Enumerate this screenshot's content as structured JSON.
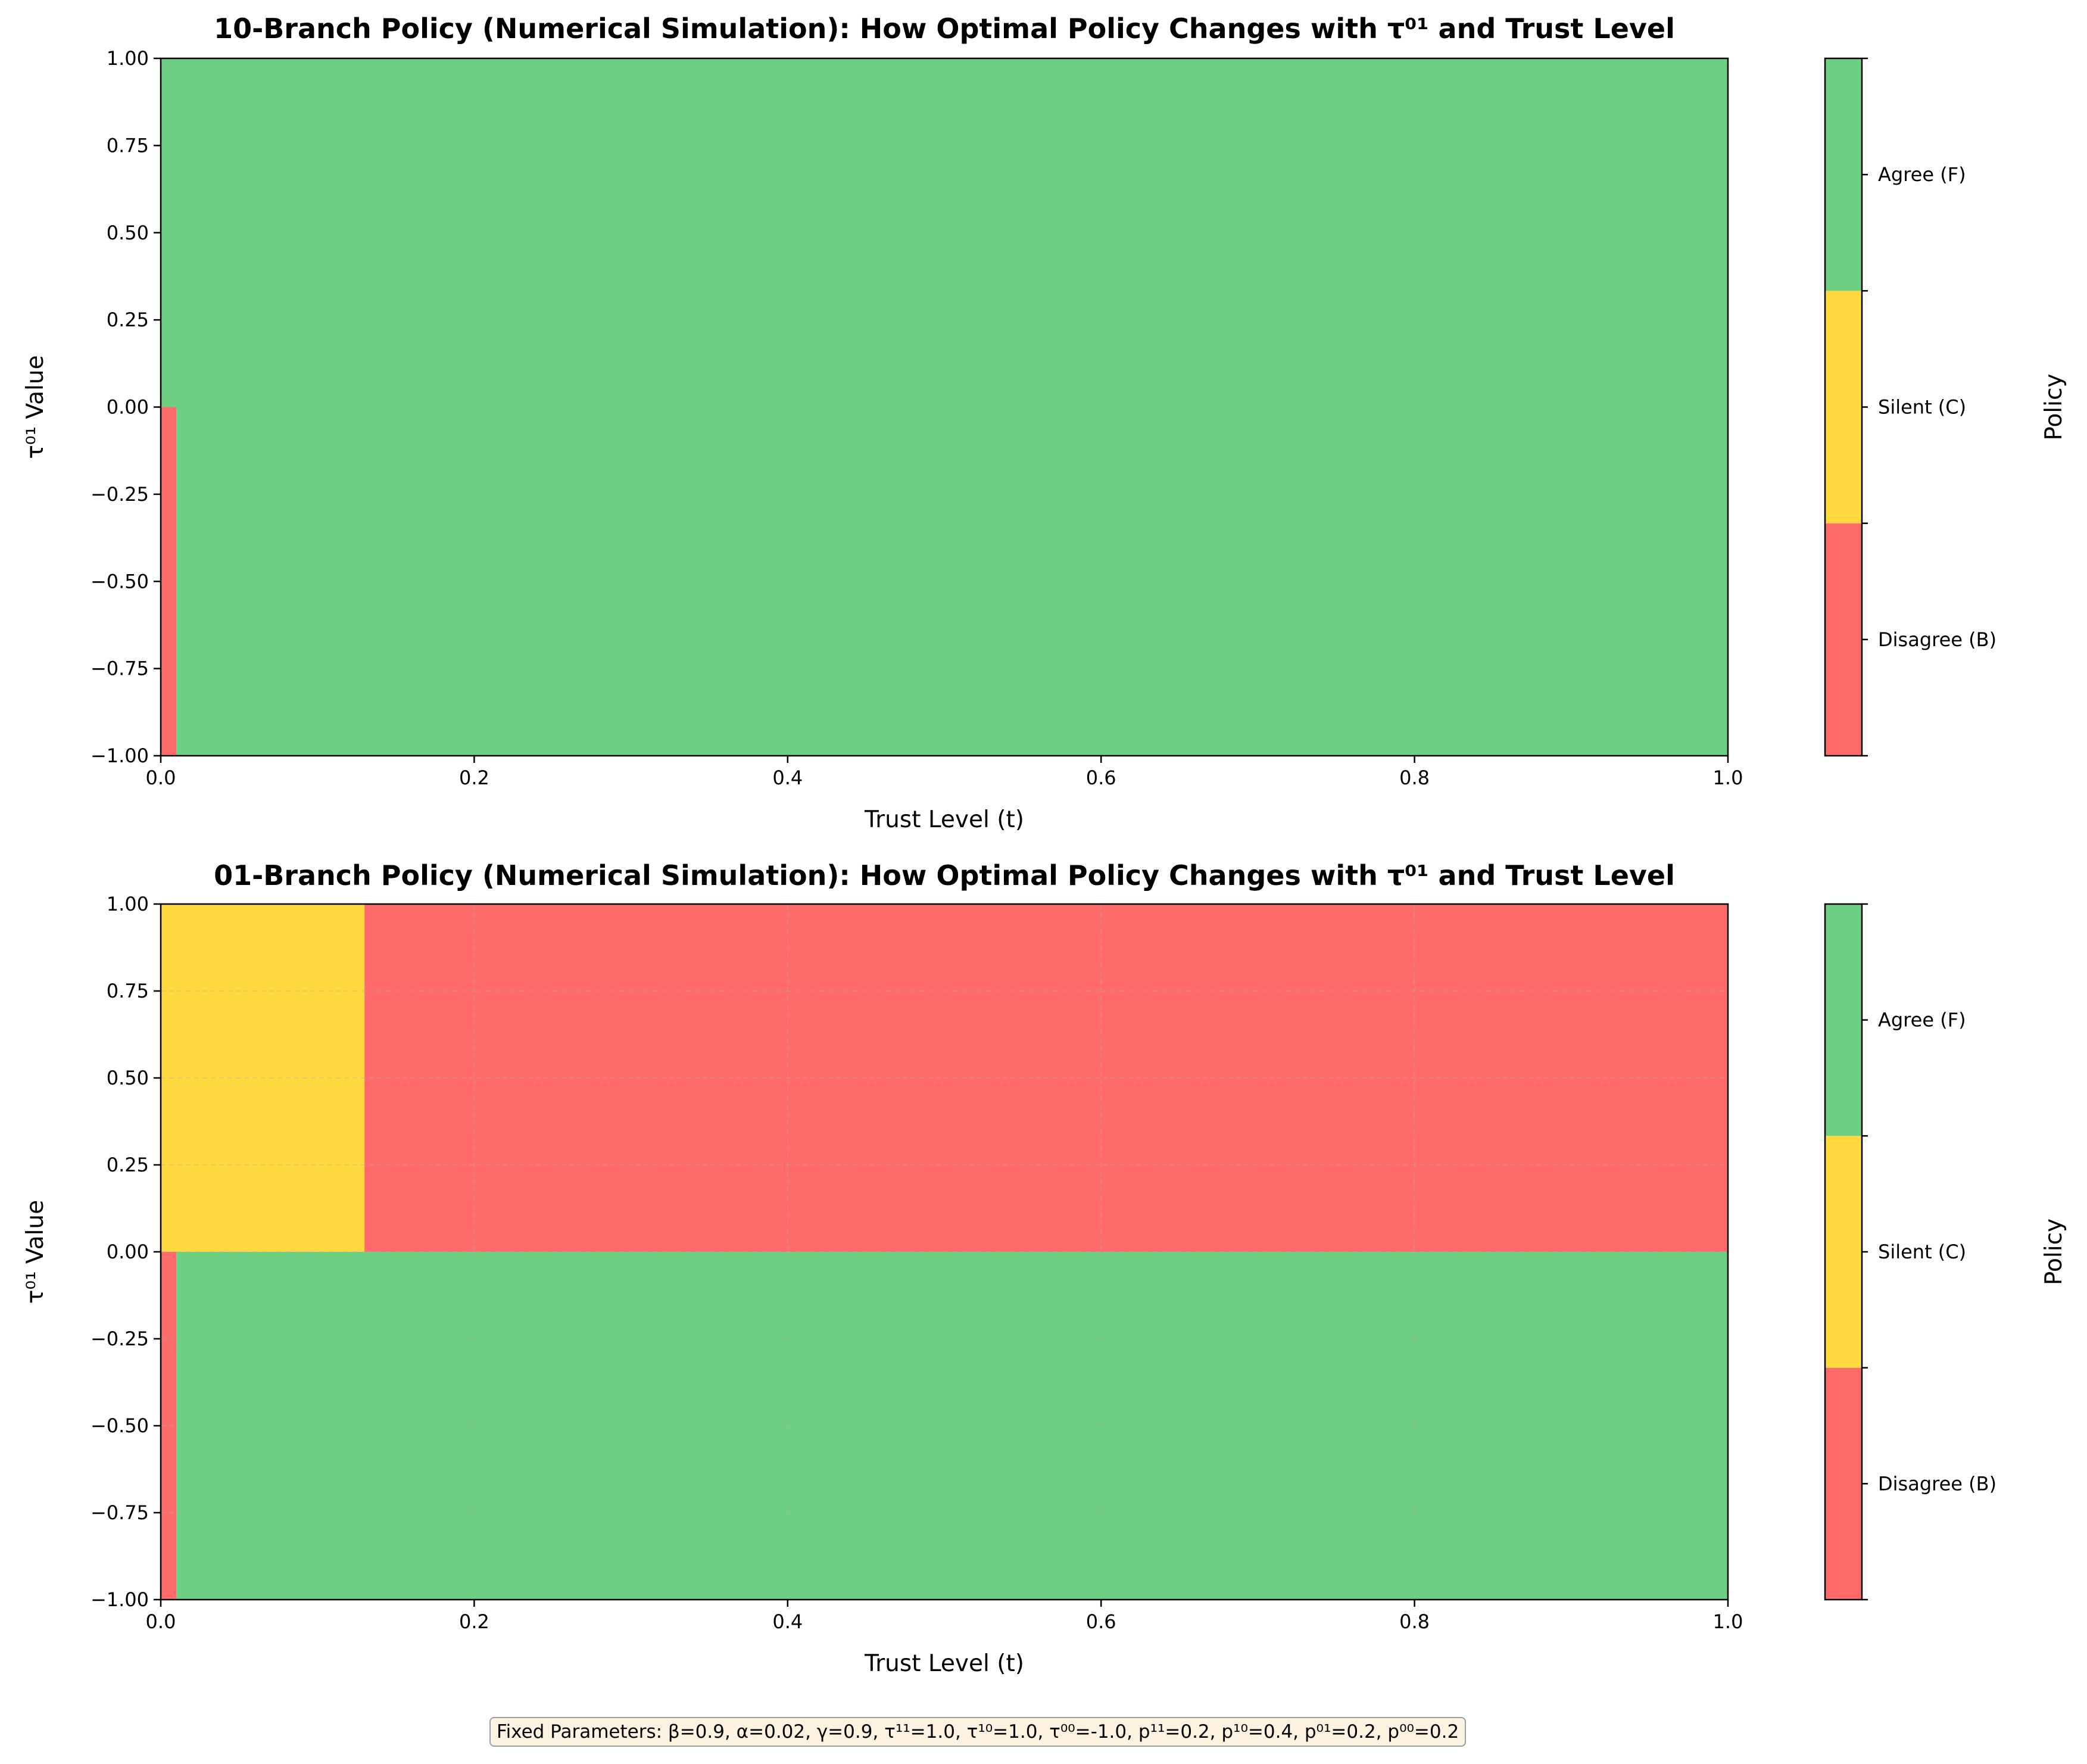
{
  "chart_data": [
    {
      "type": "heatmap",
      "title": "10-Branch Policy (Numerical Simulation): How Optimal Policy Changes with τ⁰¹ and Trust Level",
      "xlabel": "Trust Level (t)",
      "ylabel": "τ⁰¹ Value",
      "xlim": [
        0,
        1
      ],
      "ylim": [
        -1,
        1
      ],
      "xticks": [
        "0.0",
        "0.2",
        "0.4",
        "0.6",
        "0.8",
        "1.0"
      ],
      "yticks": [
        "1.00",
        "0.75",
        "0.50",
        "0.25",
        "0.00",
        "−0.25",
        "−0.50",
        "−0.75",
        "−1.00"
      ],
      "grid": false,
      "regions": [
        {
          "policy": "Agree (F)",
          "t_range": [
            0,
            1
          ],
          "tau_range": [
            0,
            1
          ]
        },
        {
          "policy": "Disagree (B)",
          "t_range": [
            0,
            0.01
          ],
          "tau_range": [
            -1,
            0
          ]
        },
        {
          "policy": "Agree (F)",
          "t_range": [
            0.01,
            1
          ],
          "tau_range": [
            -1,
            0
          ]
        }
      ],
      "colorbar": {
        "label": "Policy",
        "ticks": [
          "Agree (F)",
          "Silent (C)",
          "Disagree (B)"
        ]
      }
    },
    {
      "type": "heatmap",
      "title": "01-Branch Policy (Numerical Simulation): How Optimal Policy Changes with τ⁰¹ and Trust Level",
      "xlabel": "Trust Level (t)",
      "ylabel": "τ⁰¹ Value",
      "xlim": [
        0,
        1
      ],
      "ylim": [
        -1,
        1
      ],
      "xticks": [
        "0.0",
        "0.2",
        "0.4",
        "0.6",
        "0.8",
        "1.0"
      ],
      "yticks": [
        "1.00",
        "0.75",
        "0.50",
        "0.25",
        "0.00",
        "−0.25",
        "−0.50",
        "−0.75",
        "−1.00"
      ],
      "grid": true,
      "regions": [
        {
          "policy": "Silent (C)",
          "t_range": [
            0,
            0.13
          ],
          "tau_range": [
            0,
            1
          ]
        },
        {
          "policy": "Disagree (B)",
          "t_range": [
            0.13,
            1
          ],
          "tau_range": [
            0,
            1
          ]
        },
        {
          "policy": "Disagree (B)",
          "t_range": [
            0,
            0.01
          ],
          "tau_range": [
            -1,
            0
          ]
        },
        {
          "policy": "Agree (F)",
          "t_range": [
            0.01,
            1
          ],
          "tau_range": [
            -1,
            0
          ]
        }
      ],
      "colorbar": {
        "label": "Policy",
        "ticks": [
          "Agree (F)",
          "Silent (C)",
          "Disagree (B)"
        ]
      }
    }
  ],
  "policy_colors": {
    "Agree (F)": "#6dcf82",
    "Silent (C)": "#ffd93d",
    "Disagree (B)": "#ff6b6b"
  },
  "footer": {
    "text": "Fixed Parameters: β=0.9, α=0.02, γ=0.9, τ¹¹=1.0, τ¹⁰=1.0, τ⁰⁰=-1.0, p¹¹=0.2, p¹⁰=0.4, p⁰¹=0.2, p⁰⁰=0.2"
  }
}
